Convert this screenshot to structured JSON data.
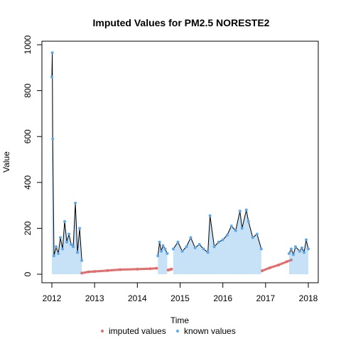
{
  "chart_data": {
    "type": "line",
    "title": "Imputed Values for  PM2.5 NORESTE2",
    "xlabel": "Time",
    "ylabel": "Value",
    "xlim": [
      2012.0,
      2018.0
    ],
    "ylim": [
      0,
      1000
    ],
    "x_ticks": [
      "2012",
      "2013",
      "2014",
      "2015",
      "2016",
      "2017",
      "2018"
    ],
    "y_ticks": [
      "0",
      "200",
      "400",
      "600",
      "800",
      "1000"
    ],
    "grid": false,
    "legend_position": "bottom",
    "series": [
      {
        "name": "imputed values",
        "color": "#e86a6a",
        "segments": [
          {
            "x": [
              2012.7,
              2012.85,
              2013.0,
              2013.3,
              2013.6,
              2014.0,
              2014.3,
              2014.45
            ],
            "y": [
              5,
              10,
              12,
              16,
              20,
              22,
              24,
              26
            ]
          },
          {
            "x": [
              2014.72,
              2014.76,
              2014.8
            ],
            "y": [
              18,
              20,
              22
            ]
          },
          {
            "x": [
              2016.92,
              2017.1,
              2017.3,
              2017.5,
              2017.6
            ],
            "y": [
              15,
              28,
              40,
              55,
              62
            ]
          }
        ]
      },
      {
        "name": "known values",
        "color": "#5fa8e8",
        "segments": [
          {
            "x": [
              2012.0,
              2012.01,
              2012.02,
              2012.05,
              2012.1,
              2012.15,
              2012.2,
              2012.25,
              2012.3,
              2012.35,
              2012.4,
              2012.45,
              2012.5,
              2012.55,
              2012.6,
              2012.65,
              2012.7
            ],
            "y": [
              860,
              965,
              590,
              80,
              120,
              90,
              160,
              110,
              230,
              140,
              175,
              130,
              120,
              310,
              95,
              200,
              60
            ]
          },
          {
            "x": [
              2014.48,
              2014.52,
              2014.56,
              2014.6,
              2014.65,
              2014.7
            ],
            "y": [
              80,
              140,
              100,
              125,
              110,
              90
            ]
          },
          {
            "x": [
              2014.84,
              2014.95,
              2015.05,
              2015.15,
              2015.25,
              2015.35,
              2015.45,
              2015.55,
              2015.65,
              2015.7,
              2015.8,
              2015.9,
              2016.0,
              2016.1,
              2016.2,
              2016.3,
              2016.4,
              2016.45,
              2016.55,
              2016.6,
              2016.7,
              2016.8,
              2016.9
            ],
            "y": [
              110,
              140,
              100,
              120,
              160,
              115,
              130,
              110,
              95,
              255,
              120,
              140,
              150,
              170,
              210,
              190,
              275,
              200,
              280,
              230,
              160,
              175,
              110
            ]
          },
          {
            "x": [
              2017.55,
              2017.6,
              2017.65,
              2017.7,
              2017.8,
              2017.85,
              2017.9,
              2017.95,
              2018.0
            ],
            "y": [
              90,
              110,
              85,
              120,
              100,
              115,
              95,
              150,
              110
            ]
          }
        ]
      }
    ]
  }
}
